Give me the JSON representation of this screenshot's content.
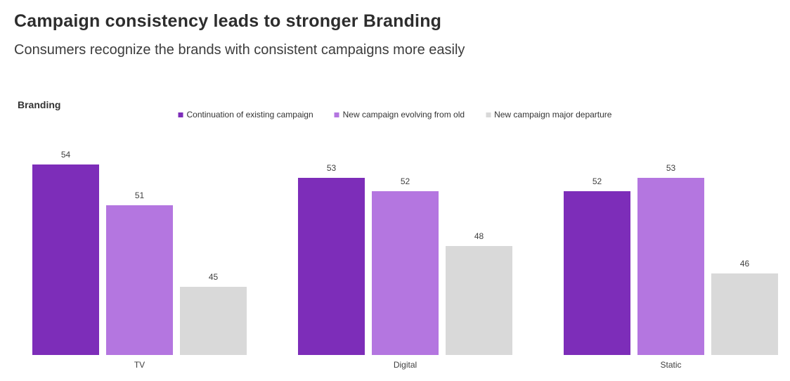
{
  "header": {
    "title": "Campaign consistency leads to stronger Branding",
    "subtitle": "Consumers recognize the brands with consistent campaigns more easily"
  },
  "chart": {
    "axis_label": "Branding"
  },
  "chart_data": {
    "type": "bar",
    "title": "Branding",
    "categories": [
      "TV",
      "Digital",
      "Static"
    ],
    "series": [
      {
        "name": "Continuation of existing campaign",
        "color": "#7d2db9",
        "values": [
          54,
          53,
          52
        ]
      },
      {
        "name": "New campaign evolving from old",
        "color": "#b476e0",
        "values": [
          51,
          52,
          53
        ]
      },
      {
        "name": "New campaign major departure",
        "color": "#d9d9d9",
        "values": [
          45,
          48,
          46
        ]
      }
    ],
    "value_labels_shown": true,
    "ylim": [
      40,
      56
    ],
    "grid": false,
    "axes_hidden": true,
    "legend_position": "top-center"
  },
  "colors": {
    "background": "#ffffff",
    "title_text": "#2d2d2d",
    "subtitle_text": "#3c3c3c",
    "label_text": "#404040"
  }
}
